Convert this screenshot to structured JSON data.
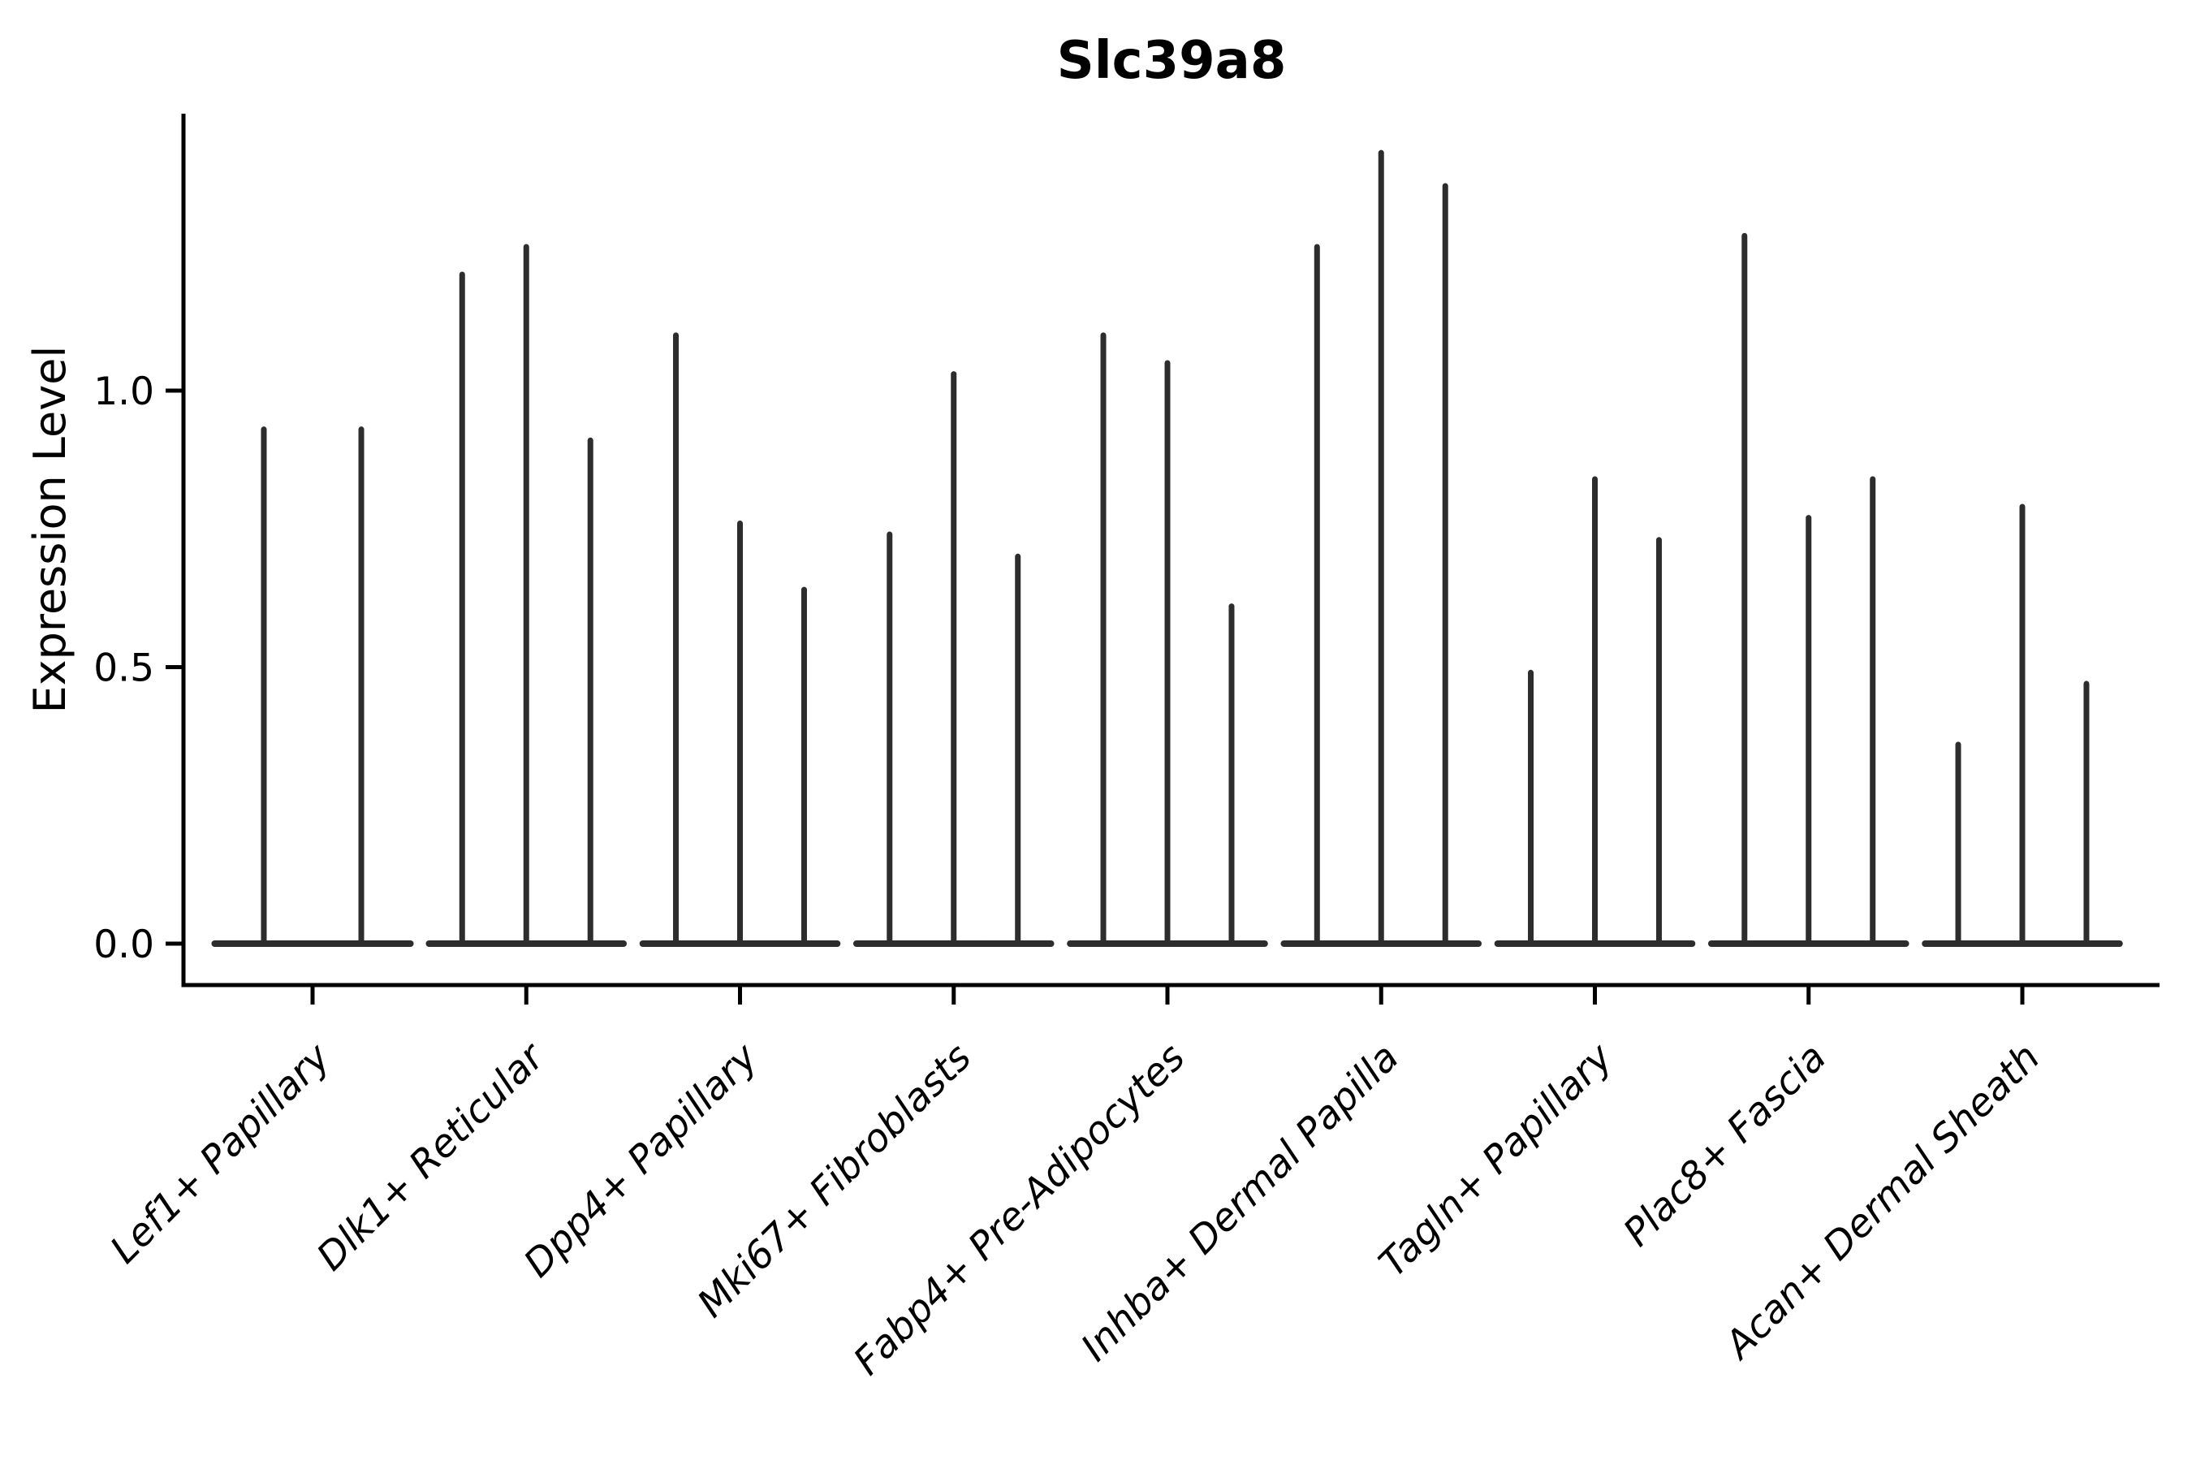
{
  "chart_data": {
    "type": "violin",
    "title": "Slc39a8",
    "ylabel": "Expression Level",
    "xlabel": "",
    "background": "#ffffff",
    "axis_color": "#000000",
    "violin_color": "#2d2d2d",
    "grid": false,
    "legend": false,
    "ylim": [
      -0.075,
      1.5
    ],
    "ytick_labels": [
      "0.0",
      "0.5",
      "1.0"
    ],
    "ytick_values": [
      0.0,
      0.5,
      1.0
    ],
    "categories": [
      "Lef1+ Papillary",
      "Dlk1+ Reticular",
      "Dpp4+ Papillary",
      "Mki67+ Fibroblasts",
      "Fabp4+ Pre-Adipocytes",
      "Inhba+ Dermal Papilla",
      "Tagln+ Papillary",
      "Plac8+ Fascia",
      "Acan+ Dermal Sheath"
    ],
    "groups": [
      {
        "label": "Lef1+ Papillary",
        "violins": [
          {
            "offset": -0.228,
            "width": 0.46,
            "max": 0.93
          },
          {
            "offset": 0.228,
            "width": 0.46,
            "max": 0.93
          }
        ]
      },
      {
        "label": "Dlk1+ Reticular",
        "violins": [
          {
            "offset": -0.3,
            "width": 0.31,
            "max": 1.21
          },
          {
            "offset": 0.0,
            "width": 0.31,
            "max": 1.26
          },
          {
            "offset": 0.3,
            "width": 0.31,
            "max": 0.91
          }
        ]
      },
      {
        "label": "Dpp4+ Papillary",
        "violins": [
          {
            "offset": -0.3,
            "width": 0.31,
            "max": 1.1
          },
          {
            "offset": 0.0,
            "width": 0.31,
            "max": 0.76
          },
          {
            "offset": 0.3,
            "width": 0.31,
            "max": 0.64
          }
        ]
      },
      {
        "label": "Mki67+ Fibroblasts",
        "violins": [
          {
            "offset": -0.3,
            "width": 0.31,
            "max": 0.74
          },
          {
            "offset": 0.0,
            "width": 0.31,
            "max": 1.03
          },
          {
            "offset": 0.3,
            "width": 0.31,
            "max": 0.7
          }
        ]
      },
      {
        "label": "Fabp4+ Pre-Adipocytes",
        "violins": [
          {
            "offset": -0.3,
            "width": 0.31,
            "max": 1.1
          },
          {
            "offset": 0.0,
            "width": 0.31,
            "max": 1.05
          },
          {
            "offset": 0.3,
            "width": 0.31,
            "max": 0.61
          }
        ]
      },
      {
        "label": "Inhba+ Dermal Papilla",
        "violins": [
          {
            "offset": -0.3,
            "width": 0.31,
            "max": 1.26
          },
          {
            "offset": 0.0,
            "width": 0.31,
            "max": 1.43
          },
          {
            "offset": 0.3,
            "width": 0.31,
            "max": 1.37
          }
        ]
      },
      {
        "label": "Tagln+ Papillary",
        "violins": [
          {
            "offset": -0.3,
            "width": 0.31,
            "max": 0.49
          },
          {
            "offset": 0.0,
            "width": 0.31,
            "max": 0.84
          },
          {
            "offset": 0.3,
            "width": 0.31,
            "max": 0.73
          }
        ]
      },
      {
        "label": "Plac8+ Fascia",
        "violins": [
          {
            "offset": -0.3,
            "width": 0.31,
            "max": 1.28
          },
          {
            "offset": 0.0,
            "width": 0.31,
            "max": 0.77
          },
          {
            "offset": 0.3,
            "width": 0.31,
            "max": 0.84
          }
        ]
      },
      {
        "label": "Acan+ Dermal Sheath",
        "violins": [
          {
            "offset": -0.3,
            "width": 0.31,
            "max": 0.36
          },
          {
            "offset": 0.0,
            "width": 0.31,
            "max": 0.79
          },
          {
            "offset": 0.3,
            "width": 0.31,
            "max": 0.47
          }
        ]
      }
    ]
  }
}
